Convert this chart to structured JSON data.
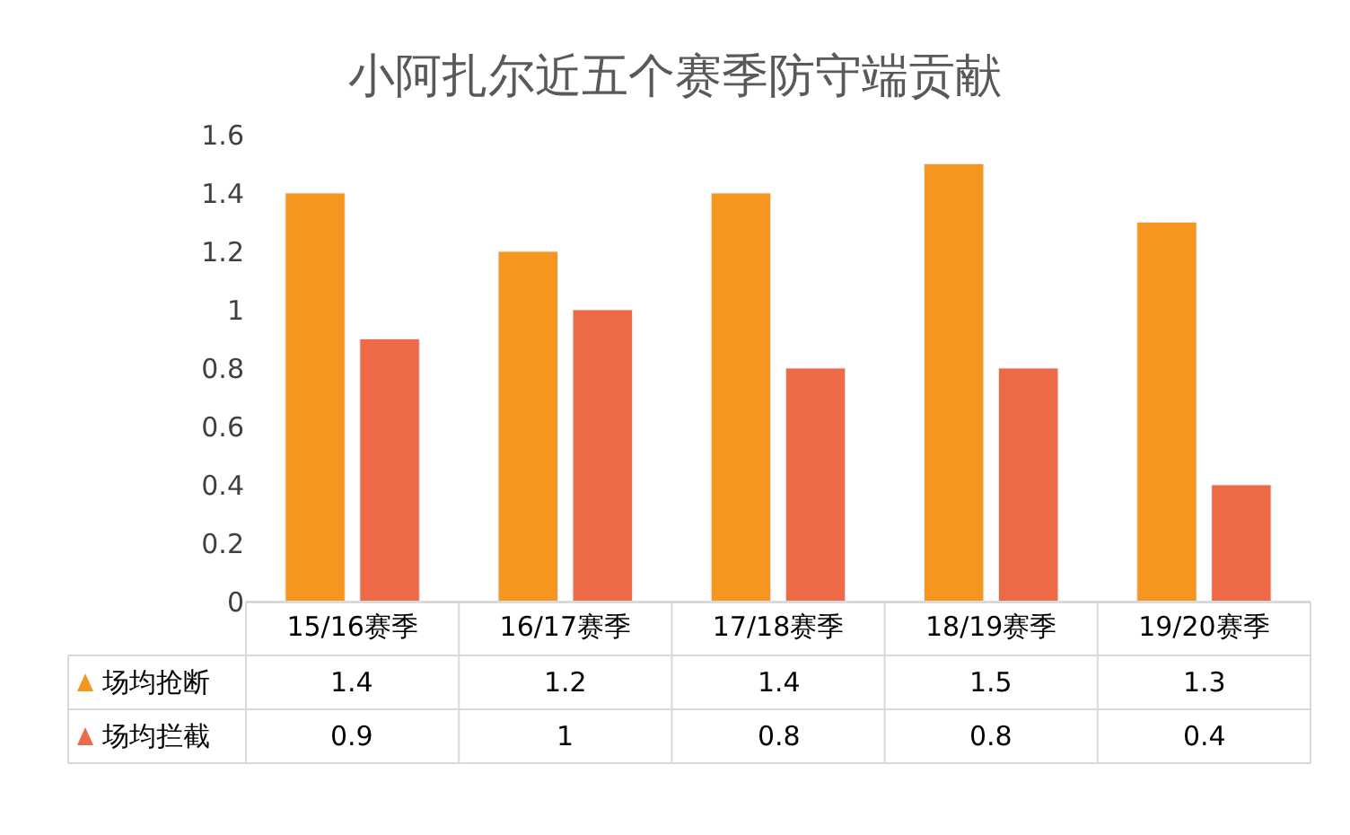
{
  "chart_data": {
    "type": "bar",
    "title": "小阿扎尔近五个赛季防守端贡献",
    "categories": [
      "15/16赛季",
      "16/17赛季",
      "17/18赛季",
      "18/19赛季",
      "19/20赛季"
    ],
    "series": [
      {
        "name": "场均抢断",
        "color": "#f7961e",
        "values": [
          1.4,
          1.2,
          1.4,
          1.5,
          1.3
        ]
      },
      {
        "name": "场均拦截",
        "color": "#ee6a47",
        "values": [
          0.9,
          1,
          0.8,
          0.8,
          0.4
        ]
      }
    ],
    "ylim": [
      0,
      1.6
    ],
    "yticks": [
      0,
      0.2,
      0.4,
      0.6,
      0.8,
      1,
      1.2,
      1.4,
      1.6
    ],
    "grid": false,
    "legend": "bottom left",
    "data_labels": true
  }
}
